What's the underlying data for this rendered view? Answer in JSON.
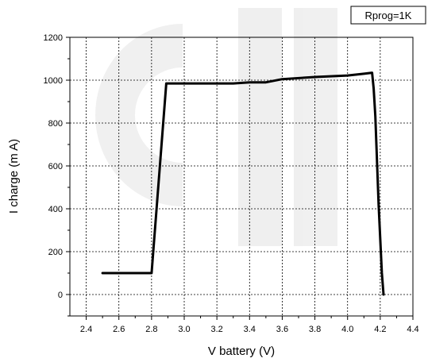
{
  "chart_data": {
    "type": "line",
    "xlabel": "V battery (V)",
    "ylabel": "I charge (m A)",
    "legend_label": "Rprog=1K",
    "legend_position": "top-right",
    "grid": true,
    "xlim": [
      2.3,
      4.4
    ],
    "ylim": [
      -100,
      1200
    ],
    "xticks": [
      "2.4",
      "2.6",
      "2.8",
      "3.0",
      "3.2",
      "3.4",
      "3.6",
      "3.8",
      "4.0",
      "4.2",
      "4.4"
    ],
    "yticks": [
      "0",
      "200",
      "400",
      "600",
      "800",
      "1000",
      "1200"
    ],
    "series": [
      {
        "points": [
          [
            2.5,
            100
          ],
          [
            2.8,
            100
          ],
          [
            2.89,
            985
          ],
          [
            3.0,
            985
          ],
          [
            3.3,
            985
          ],
          [
            3.4,
            990
          ],
          [
            3.5,
            990
          ],
          [
            3.6,
            1005
          ],
          [
            3.8,
            1015
          ],
          [
            4.0,
            1022
          ],
          [
            4.1,
            1030
          ],
          [
            4.15,
            1035
          ],
          [
            4.16,
            960
          ],
          [
            4.17,
            830
          ],
          [
            4.19,
            420
          ],
          [
            4.21,
            100
          ],
          [
            4.22,
            0
          ]
        ],
        "color": "#000000"
      }
    ]
  }
}
